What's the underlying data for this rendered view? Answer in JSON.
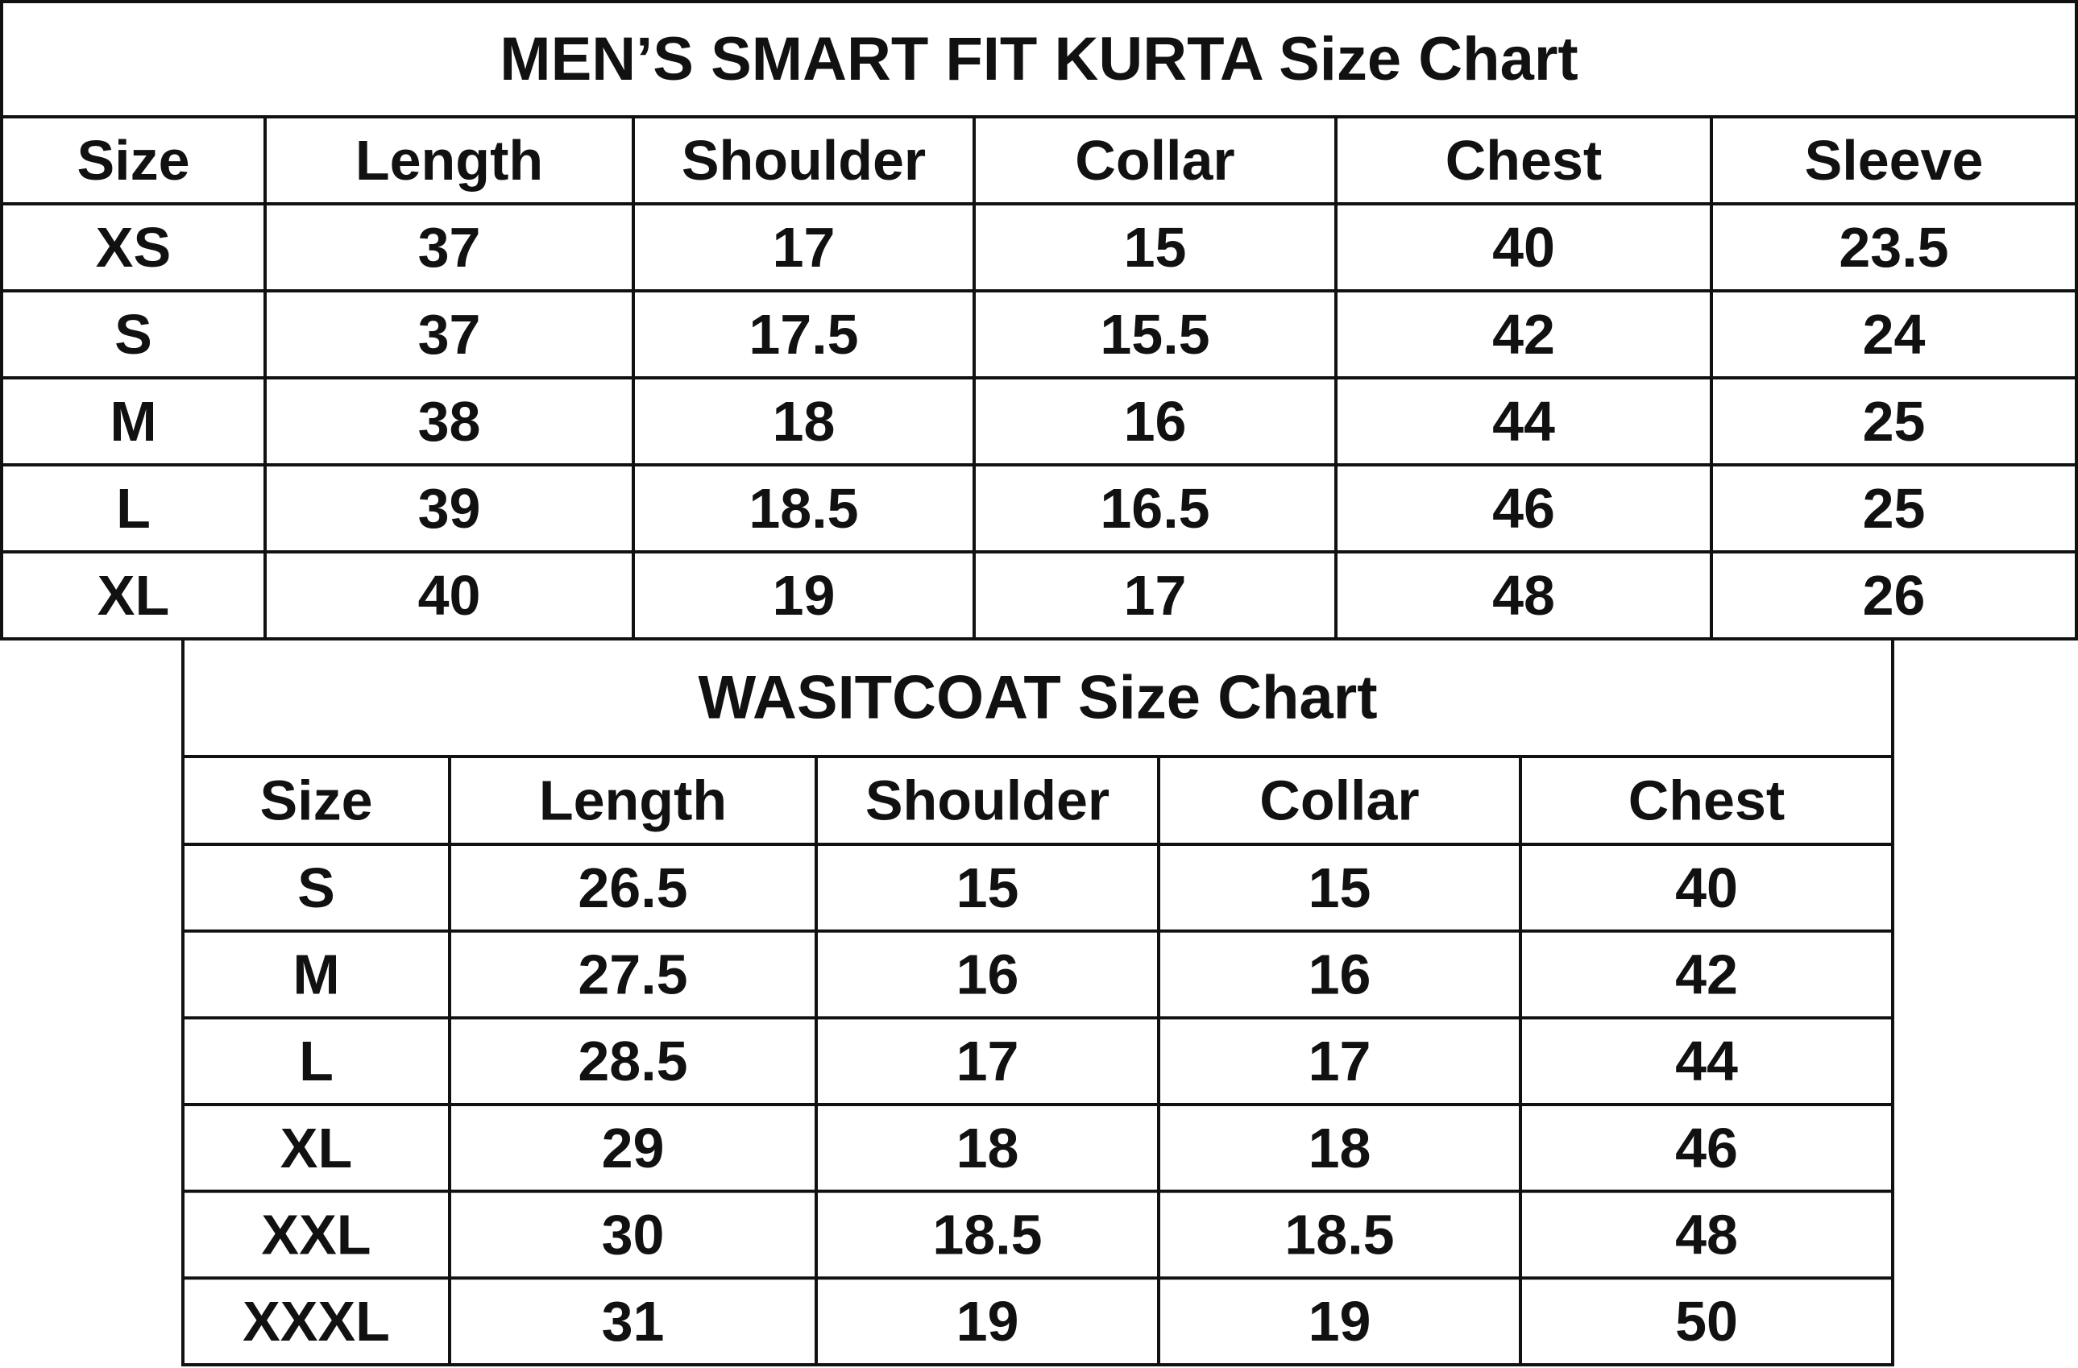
{
  "tables": [
    {
      "title": "MEN’S SMART FIT KURTA Size Chart",
      "header": [
        "Size",
        "Length",
        "Shoulder",
        "Collar",
        "Chest",
        "Sleeve"
      ],
      "rows": [
        [
          "XS",
          37,
          17,
          15,
          40,
          23.5
        ],
        [
          "S",
          37,
          17.5,
          15.5,
          42,
          24
        ],
        [
          "M",
          38,
          18,
          16,
          44,
          25
        ],
        [
          "L",
          39,
          18.5,
          16.5,
          46,
          25
        ],
        [
          "XL",
          40,
          19,
          17,
          48,
          26
        ]
      ]
    },
    {
      "title": "WASITCOAT Size Chart",
      "header": [
        "Size",
        "Length",
        "Shoulder",
        "Collar",
        "Chest"
      ],
      "rows": [
        [
          "S",
          26.5,
          15,
          15,
          40
        ],
        [
          "M",
          27.5,
          16,
          16,
          42
        ],
        [
          "L",
          28.5,
          17,
          17,
          44
        ],
        [
          "XL",
          29,
          18,
          18,
          46
        ],
        [
          "XXL",
          30,
          18.5,
          18.5,
          48
        ],
        [
          "XXXL",
          31,
          19,
          19,
          50
        ]
      ]
    }
  ]
}
